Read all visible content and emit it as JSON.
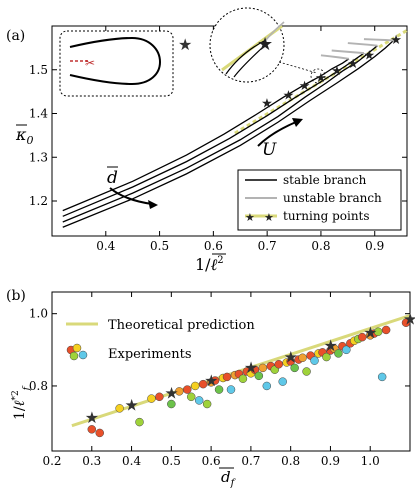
{
  "panels": {
    "a": {
      "label": "(a)",
      "chart_data": {
        "type": "line",
        "xlabel": "1/ℓ²",
        "ylabel": "κ₀",
        "xlim": [
          0.3,
          0.96
        ],
        "ylim": [
          1.12,
          1.6
        ],
        "xticks": [
          0.4,
          0.5,
          0.6,
          0.7,
          0.8,
          0.9
        ],
        "yticks": [
          1.2,
          1.3,
          1.4,
          1.5
        ],
        "grid": false,
        "legend": {
          "placement": "bottom-right",
          "entries": [
            "stable branch",
            "unstable branch",
            "turning points"
          ]
        },
        "annotations": {
          "d_label": "d",
          "u_label": "U"
        },
        "series": [
          {
            "name": "stable branch",
            "color": "#000000",
            "curves": [
              [
                [
                  0.32,
                  1.14
                ],
                [
                  0.45,
                  1.205
                ],
                [
                  0.55,
                  1.262
                ],
                [
                  0.65,
                  1.327
                ],
                [
                  0.72,
                  1.38
                ],
                [
                  0.78,
                  1.43
                ],
                [
                  0.83,
                  1.47
                ],
                [
                  0.87,
                  1.503
                ],
                [
                  0.9,
                  1.53
                ],
                [
                  0.92,
                  1.55
                ],
                [
                  0.935,
                  1.567
                ]
              ],
              [
                [
                  0.32,
                  1.152
                ],
                [
                  0.45,
                  1.218
                ],
                [
                  0.55,
                  1.275
                ],
                [
                  0.65,
                  1.34
                ],
                [
                  0.72,
                  1.393
                ],
                [
                  0.77,
                  1.437
                ],
                [
                  0.81,
                  1.47
                ],
                [
                  0.84,
                  1.497
                ],
                [
                  0.87,
                  1.52
                ],
                [
                  0.89,
                  1.54
                ],
                [
                  0.905,
                  1.555
                ]
              ],
              [
                [
                  0.32,
                  1.165
                ],
                [
                  0.45,
                  1.232
                ],
                [
                  0.55,
                  1.29
                ],
                [
                  0.63,
                  1.343
                ],
                [
                  0.7,
                  1.395
                ],
                [
                  0.75,
                  1.435
                ],
                [
                  0.79,
                  1.465
                ],
                [
                  0.82,
                  1.488
                ],
                [
                  0.845,
                  1.508
                ],
                [
                  0.865,
                  1.525
                ],
                [
                  0.88,
                  1.538
                ]
              ],
              [
                [
                  0.32,
                  1.178
                ],
                [
                  0.45,
                  1.245
                ],
                [
                  0.55,
                  1.305
                ],
                [
                  0.62,
                  1.353
                ],
                [
                  0.68,
                  1.398
                ],
                [
                  0.73,
                  1.437
                ],
                [
                  0.77,
                  1.466
                ],
                [
                  0.8,
                  1.486
                ],
                [
                  0.82,
                  1.502
                ],
                [
                  0.84,
                  1.515
                ],
                [
                  0.852,
                  1.525
                ]
              ]
            ]
          },
          {
            "name": "unstable branch",
            "color": "#b3b3b3",
            "curves": [
              [
                [
                  0.935,
                  1.567
                ],
                [
                  0.92,
                  1.568
                ],
                [
                  0.9,
                  1.569
                ],
                [
                  0.88,
                  1.57
                ]
              ],
              [
                [
                  0.905,
                  1.555
                ],
                [
                  0.89,
                  1.557
                ],
                [
                  0.87,
                  1.559
                ],
                [
                  0.85,
                  1.561
                ]
              ],
              [
                [
                  0.88,
                  1.538
                ],
                [
                  0.86,
                  1.54
                ],
                [
                  0.84,
                  1.542
                ],
                [
                  0.82,
                  1.544
                ]
              ],
              [
                [
                  0.852,
                  1.525
                ],
                [
                  0.835,
                  1.528
                ],
                [
                  0.815,
                  1.531
                ],
                [
                  0.8,
                  1.533
                ]
              ]
            ]
          },
          {
            "name": "turning points",
            "x": [
              0.7,
              0.74,
              0.77,
              0.8,
              0.83,
              0.86,
              0.89,
              0.94
            ],
            "y": [
              1.425,
              1.443,
              1.465,
              1.483,
              1.5,
              1.516,
              1.535,
              1.57
            ]
          },
          {
            "name": "yellow fit",
            "style": "dashed",
            "color": "#d9d97a",
            "x": [
              0.64,
              0.96
            ],
            "y": [
              1.355,
              1.59
            ]
          }
        ],
        "outlier_star": {
          "x": 0.55,
          "y": 1.555
        }
      }
    },
    "b": {
      "label": "(b)",
      "chart_data": {
        "type": "scatter",
        "xlabel": "d_f",
        "ylabel": "1/ℓ*²_f",
        "xlim": [
          0.2,
          1.1
        ],
        "ylim": [
          0.62,
          1.06
        ],
        "xticks": [
          0.2,
          0.3,
          0.4,
          0.5,
          0.6,
          0.7,
          0.8,
          0.9,
          1.0
        ],
        "yticks": [
          0.8,
          1.0
        ],
        "grid": false,
        "legend": {
          "placement": "top-left",
          "entries": [
            "Theoretical prediction",
            "Experiments"
          ]
        },
        "theory": {
          "x": [
            0.25,
            1.1
          ],
          "y": [
            0.69,
            0.995
          ],
          "color": "#d9d97a"
        },
        "stars": {
          "x": [
            0.3,
            0.4,
            0.5,
            0.6,
            0.7,
            0.8,
            0.9,
            1.0,
            1.1
          ],
          "y": [
            0.714,
            0.748,
            0.782,
            0.817,
            0.852,
            0.882,
            0.914,
            0.95,
            0.987
          ]
        },
        "experiments": [
          {
            "x": 0.3,
            "y": 0.68,
            "c": "#e8502a"
          },
          {
            "x": 0.32,
            "y": 0.67,
            "c": "#e8502a"
          },
          {
            "x": 0.37,
            "y": 0.738,
            "c": "#f5d020"
          },
          {
            "x": 0.42,
            "y": 0.7,
            "c": "#9fd23a"
          },
          {
            "x": 0.45,
            "y": 0.765,
            "c": "#f5d020"
          },
          {
            "x": 0.47,
            "y": 0.77,
            "c": "#e8502a"
          },
          {
            "x": 0.5,
            "y": 0.75,
            "c": "#6cc24a"
          },
          {
            "x": 0.52,
            "y": 0.785,
            "c": "#f0a030"
          },
          {
            "x": 0.54,
            "y": 0.79,
            "c": "#e8502a"
          },
          {
            "x": 0.55,
            "y": 0.77,
            "c": "#9fd23a"
          },
          {
            "x": 0.56,
            "y": 0.8,
            "c": "#f5d020"
          },
          {
            "x": 0.57,
            "y": 0.76,
            "c": "#5fc8e8"
          },
          {
            "x": 0.58,
            "y": 0.805,
            "c": "#e8502a"
          },
          {
            "x": 0.59,
            "y": 0.75,
            "c": "#9fd23a"
          },
          {
            "x": 0.6,
            "y": 0.81,
            "c": "#f0a030"
          },
          {
            "x": 0.61,
            "y": 0.815,
            "c": "#e8502a"
          },
          {
            "x": 0.62,
            "y": 0.79,
            "c": "#6cc24a"
          },
          {
            "x": 0.63,
            "y": 0.822,
            "c": "#f5d020"
          },
          {
            "x": 0.64,
            "y": 0.825,
            "c": "#e8502a"
          },
          {
            "x": 0.65,
            "y": 0.79,
            "c": "#5fc8e8"
          },
          {
            "x": 0.66,
            "y": 0.83,
            "c": "#f0a030"
          },
          {
            "x": 0.67,
            "y": 0.833,
            "c": "#e8502a"
          },
          {
            "x": 0.68,
            "y": 0.82,
            "c": "#9fd23a"
          },
          {
            "x": 0.69,
            "y": 0.84,
            "c": "#e8502a"
          },
          {
            "x": 0.7,
            "y": 0.835,
            "c": "#f5d020"
          },
          {
            "x": 0.71,
            "y": 0.845,
            "c": "#e8502a"
          },
          {
            "x": 0.72,
            "y": 0.828,
            "c": "#6cc24a"
          },
          {
            "x": 0.73,
            "y": 0.85,
            "c": "#f0a030"
          },
          {
            "x": 0.74,
            "y": 0.8,
            "c": "#5fc8e8"
          },
          {
            "x": 0.75,
            "y": 0.855,
            "c": "#e8502a"
          },
          {
            "x": 0.76,
            "y": 0.845,
            "c": "#9fd23a"
          },
          {
            "x": 0.77,
            "y": 0.86,
            "c": "#e8502a"
          },
          {
            "x": 0.78,
            "y": 0.812,
            "c": "#5fc8e8"
          },
          {
            "x": 0.79,
            "y": 0.865,
            "c": "#f5d020"
          },
          {
            "x": 0.8,
            "y": 0.868,
            "c": "#e8502a"
          },
          {
            "x": 0.81,
            "y": 0.85,
            "c": "#6cc24a"
          },
          {
            "x": 0.82,
            "y": 0.873,
            "c": "#e8502a"
          },
          {
            "x": 0.83,
            "y": 0.878,
            "c": "#f0a030"
          },
          {
            "x": 0.84,
            "y": 0.84,
            "c": "#9fd23a"
          },
          {
            "x": 0.85,
            "y": 0.884,
            "c": "#e8502a"
          },
          {
            "x": 0.86,
            "y": 0.87,
            "c": "#5fc8e8"
          },
          {
            "x": 0.87,
            "y": 0.89,
            "c": "#f5d020"
          },
          {
            "x": 0.88,
            "y": 0.893,
            "c": "#e8502a"
          },
          {
            "x": 0.89,
            "y": 0.88,
            "c": "#9fd23a"
          },
          {
            "x": 0.9,
            "y": 0.898,
            "c": "#e8502a"
          },
          {
            "x": 0.91,
            "y": 0.903,
            "c": "#f0a030"
          },
          {
            "x": 0.92,
            "y": 0.89,
            "c": "#6cc24a"
          },
          {
            "x": 0.93,
            "y": 0.91,
            "c": "#e8502a"
          },
          {
            "x": 0.94,
            "y": 0.9,
            "c": "#5fc8e8"
          },
          {
            "x": 0.95,
            "y": 0.918,
            "c": "#e8502a"
          },
          {
            "x": 0.96,
            "y": 0.925,
            "c": "#f5d020"
          },
          {
            "x": 0.97,
            "y": 0.93,
            "c": "#9fd23a"
          },
          {
            "x": 0.98,
            "y": 0.935,
            "c": "#e8502a"
          },
          {
            "x": 1.0,
            "y": 0.94,
            "c": "#f0a030"
          },
          {
            "x": 1.01,
            "y": 0.945,
            "c": "#e8502a"
          },
          {
            "x": 1.02,
            "y": 0.95,
            "c": "#9fd23a"
          },
          {
            "x": 1.03,
            "y": 0.825,
            "c": "#5fc8e8"
          },
          {
            "x": 1.04,
            "y": 0.955,
            "c": "#e8502a"
          },
          {
            "x": 1.09,
            "y": 0.975,
            "c": "#e8502a"
          }
        ]
      }
    }
  },
  "legend_a": {
    "stable": "stable branch",
    "unstable": "unstable branch",
    "turning": "turning points"
  },
  "legend_b": {
    "theory": "Theoretical prediction",
    "exp": "Experiments"
  }
}
